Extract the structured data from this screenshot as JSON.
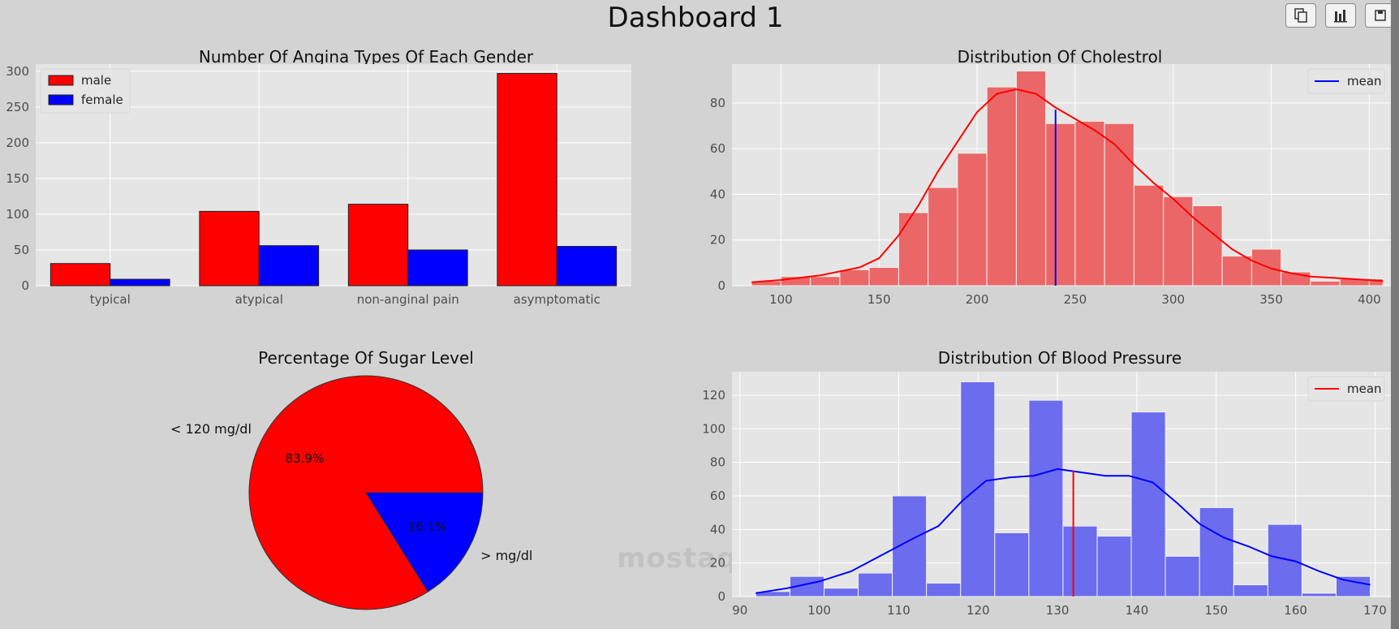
{
  "dashboard": {
    "title": "Dashboard 1",
    "watermark": "mostaql.com"
  },
  "toolbar": {
    "copy_icon": "copy-icon",
    "chart_icon": "bar-chart-icon",
    "save_icon": "save-icon"
  },
  "colors": {
    "red": "#ff0000",
    "blue": "#0000ff",
    "hist_red": "#eb6767",
    "hist_blue": "#6c6cee",
    "panel": "#e5e5e5"
  },
  "chart_data": [
    {
      "id": "angina",
      "type": "bar",
      "title": "Number Of Angina Types Of Each Gender",
      "categories": [
        "typical",
        "atypical",
        "non-anginal pain",
        "asymptomatic"
      ],
      "series": [
        {
          "name": "male",
          "color": "#ff0000",
          "values": [
            31,
            104,
            114,
            297
          ]
        },
        {
          "name": "female",
          "color": "#0000ff",
          "values": [
            9,
            56,
            50,
            55
          ]
        }
      ],
      "ylim": [
        0,
        310
      ],
      "yticks": [
        0,
        50,
        100,
        150,
        200,
        250,
        300
      ],
      "legend": "top-left",
      "grid": true
    },
    {
      "id": "chol",
      "type": "bar",
      "subtype": "histogram",
      "title": "Distribution Of Cholestrol",
      "bins": [
        [
          85,
          100,
          2
        ],
        [
          100,
          115,
          4
        ],
        [
          115,
          130,
          4
        ],
        [
          130,
          145,
          7
        ],
        [
          145,
          160,
          8
        ],
        [
          160,
          175,
          32
        ],
        [
          175,
          190,
          43
        ],
        [
          190,
          205,
          58
        ],
        [
          205,
          220,
          87
        ],
        [
          220,
          235,
          94
        ],
        [
          235,
          250,
          71
        ],
        [
          250,
          265,
          72
        ],
        [
          265,
          280,
          71
        ],
        [
          280,
          295,
          44
        ],
        [
          295,
          310,
          39
        ],
        [
          310,
          325,
          35
        ],
        [
          325,
          340,
          13
        ],
        [
          340,
          355,
          16
        ],
        [
          355,
          370,
          6
        ],
        [
          370,
          385,
          2
        ],
        [
          385,
          400,
          3
        ],
        [
          400,
          407,
          3
        ]
      ],
      "kde": [
        [
          85,
          1.5
        ],
        [
          100,
          2.5
        ],
        [
          120,
          4.5
        ],
        [
          140,
          8
        ],
        [
          150,
          12
        ],
        [
          160,
          22
        ],
        [
          170,
          35
        ],
        [
          180,
          50
        ],
        [
          190,
          63
        ],
        [
          200,
          76
        ],
        [
          210,
          84
        ],
        [
          220,
          86
        ],
        [
          230,
          84
        ],
        [
          240,
          78
        ],
        [
          250,
          73
        ],
        [
          260,
          68
        ],
        [
          270,
          62
        ],
        [
          280,
          53
        ],
        [
          290,
          45
        ],
        [
          300,
          38
        ],
        [
          310,
          30
        ],
        [
          320,
          23
        ],
        [
          330,
          16
        ],
        [
          340,
          11
        ],
        [
          350,
          7.5
        ],
        [
          360,
          5.5
        ],
        [
          370,
          4
        ],
        [
          380,
          3.5
        ],
        [
          390,
          3
        ],
        [
          400,
          2.5
        ],
        [
          407,
          2
        ]
      ],
      "mean": 240,
      "mean_height": 77,
      "mean_label": "mean",
      "xlim": [
        75,
        411
      ],
      "ylim": [
        0,
        97
      ],
      "xticks": [
        100,
        150,
        200,
        250,
        300,
        350,
        400
      ],
      "yticks": [
        0,
        20,
        40,
        60,
        80
      ],
      "legend": "top-right",
      "grid": true
    },
    {
      "id": "sugar",
      "type": "pie",
      "title": "Percentage Of Sugar Level",
      "labels": [
        "< 120 mg/dl",
        "> mg/dl"
      ],
      "values": [
        83.9,
        16.1
      ],
      "pct_labels": [
        "83.9%",
        "16.1%"
      ],
      "colors": [
        "#ff0000",
        "#0000ff"
      ]
    },
    {
      "id": "bp",
      "type": "bar",
      "subtype": "histogram",
      "title": "Distribution Of Blood Pressure",
      "bins": [
        [
          92,
          96.3,
          3
        ],
        [
          96.3,
          100.6,
          12
        ],
        [
          100.6,
          104.9,
          5
        ],
        [
          104.9,
          109.2,
          14
        ],
        [
          109.2,
          113.5,
          60
        ],
        [
          113.5,
          117.8,
          8
        ],
        [
          117.8,
          122.1,
          128
        ],
        [
          122.1,
          126.4,
          38
        ],
        [
          126.4,
          130.7,
          117
        ],
        [
          130.7,
          135,
          42
        ],
        [
          135,
          139.3,
          36
        ],
        [
          139.3,
          143.6,
          110
        ],
        [
          143.6,
          147.9,
          24
        ],
        [
          147.9,
          152.2,
          53
        ],
        [
          152.2,
          156.5,
          7
        ],
        [
          156.5,
          160.8,
          43
        ],
        [
          160.8,
          165.1,
          2
        ],
        [
          165.1,
          169.4,
          12
        ]
      ],
      "kde": [
        [
          92,
          2
        ],
        [
          96,
          5
        ],
        [
          100,
          9
        ],
        [
          104,
          15
        ],
        [
          108,
          25
        ],
        [
          112,
          35
        ],
        [
          115,
          42
        ],
        [
          118,
          57
        ],
        [
          121,
          69
        ],
        [
          124,
          71
        ],
        [
          127,
          72
        ],
        [
          130,
          76
        ],
        [
          133,
          74
        ],
        [
          136,
          72
        ],
        [
          139,
          72
        ],
        [
          142,
          68
        ],
        [
          145,
          56
        ],
        [
          148,
          43
        ],
        [
          151,
          35
        ],
        [
          154,
          30
        ],
        [
          157,
          24
        ],
        [
          160,
          21
        ],
        [
          163,
          15
        ],
        [
          166,
          10
        ],
        [
          169.4,
          7
        ]
      ],
      "mean": 132,
      "mean_height": 75,
      "mean_label": "mean",
      "xlim": [
        89,
        172
      ],
      "ylim": [
        0,
        134
      ],
      "xticks": [
        90,
        100,
        110,
        120,
        130,
        140,
        150,
        160,
        170
      ],
      "yticks": [
        0,
        20,
        40,
        60,
        80,
        100,
        120
      ],
      "legend": "top-right",
      "grid": true
    }
  ]
}
